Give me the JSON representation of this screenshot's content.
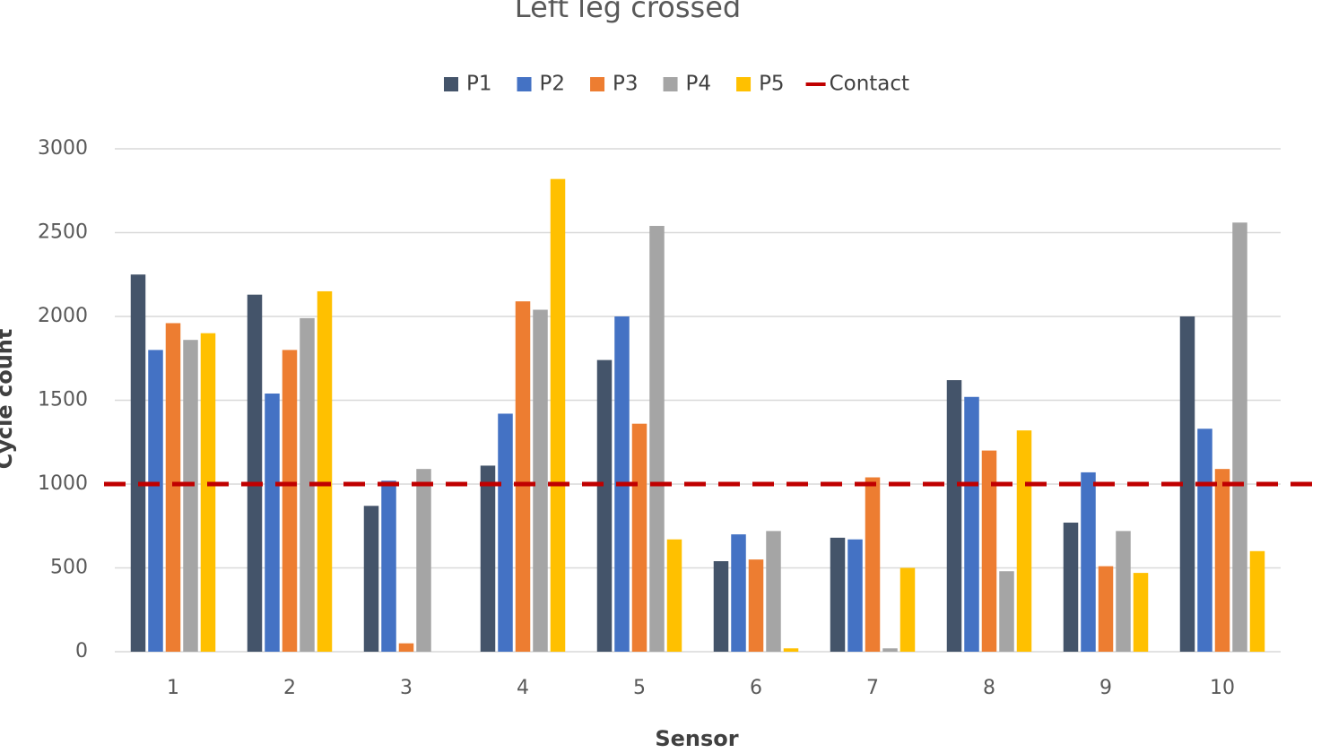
{
  "chart_data": {
    "type": "bar",
    "title": "Left leg crossed",
    "x_label": "Sensor",
    "y_label": "Cycle count",
    "categories": [
      "1",
      "2",
      "3",
      "4",
      "5",
      "6",
      "7",
      "8",
      "9",
      "10"
    ],
    "series": [
      {
        "name": "P1",
        "color": "#44546a",
        "values": [
          2250,
          2130,
          870,
          1110,
          1740,
          540,
          680,
          1620,
          770,
          2000
        ]
      },
      {
        "name": "P2",
        "color": "#4472c4",
        "values": [
          1800,
          1540,
          1020,
          1420,
          2000,
          700,
          670,
          1520,
          1070,
          1330
        ]
      },
      {
        "name": "P3",
        "color": "#ed7d31",
        "values": [
          1960,
          1800,
          50,
          2090,
          1360,
          550,
          1040,
          1200,
          510,
          1090
        ]
      },
      {
        "name": "P4",
        "color": "#a5a5a5",
        "values": [
          1860,
          1990,
          1090,
          2040,
          2540,
          720,
          20,
          480,
          720,
          2560
        ]
      },
      {
        "name": "P5",
        "color": "#ffc000",
        "values": [
          1900,
          2150,
          0,
          2820,
          670,
          20,
          500,
          1320,
          470,
          600
        ]
      },
      {
        "name": "Contact",
        "type": "line",
        "color": "#c00000",
        "dashed": true,
        "values": [
          1000,
          1000,
          1000,
          1000,
          1000,
          1000,
          1000,
          1000,
          1000,
          1000
        ]
      }
    ],
    "ylim": [
      0,
      3000
    ],
    "yticks": [
      0,
      500,
      1000,
      1500,
      2000,
      2500,
      3000
    ],
    "grid": true,
    "legend": "top"
  }
}
